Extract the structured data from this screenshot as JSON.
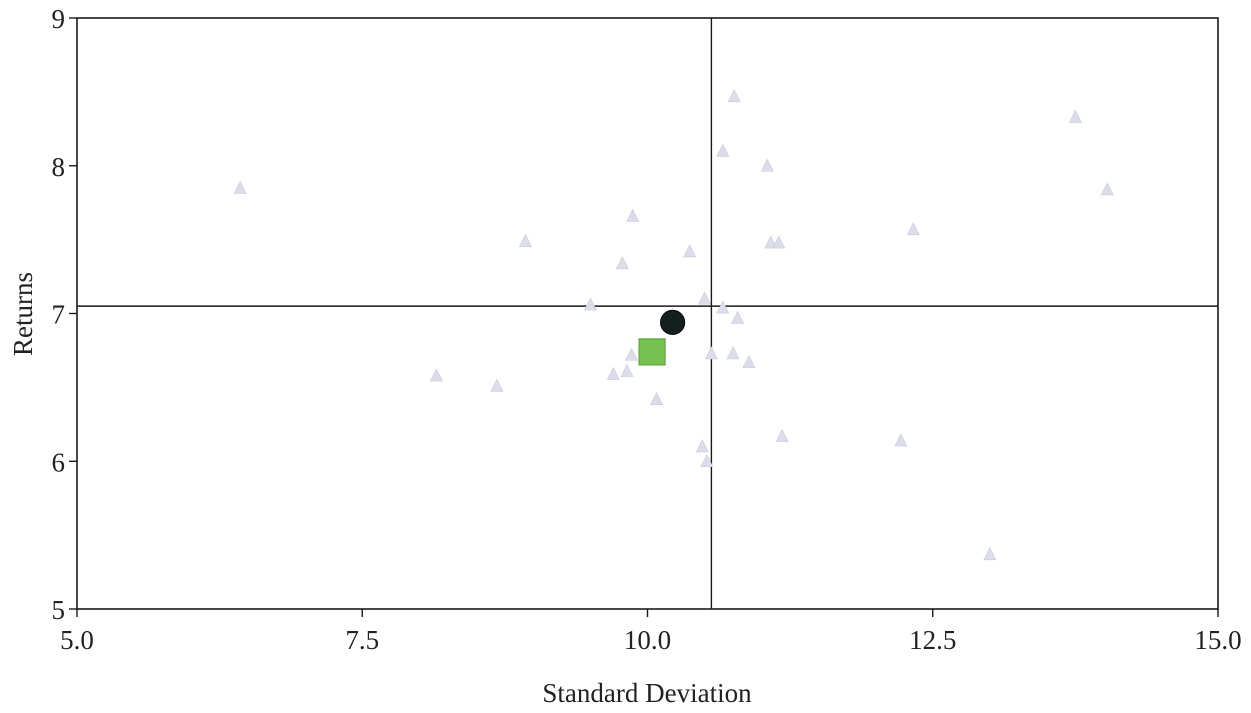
{
  "chart_data": {
    "type": "scatter",
    "xlabel": "Standard Deviation",
    "ylabel": "Returns",
    "xlim": [
      5.0,
      15.0
    ],
    "ylim": [
      5,
      9
    ],
    "x_ticks": [
      {
        "value": 5.0,
        "label": "5.0"
      },
      {
        "value": 7.5,
        "label": "7.5"
      },
      {
        "value": 10.0,
        "label": "10.0"
      },
      {
        "value": 12.5,
        "label": "12.5"
      },
      {
        "value": 15.0,
        "label": "15.0"
      }
    ],
    "y_ticks": [
      {
        "value": 5,
        "label": "5"
      },
      {
        "value": 6,
        "label": "6"
      },
      {
        "value": 7,
        "label": "7"
      },
      {
        "value": 8,
        "label": "8"
      },
      {
        "value": 9,
        "label": "9"
      }
    ],
    "grid": false,
    "reference_lines": {
      "vertical_x": 10.56,
      "horizontal_y": 7.05
    },
    "series": [
      {
        "marker": "triangle",
        "color": "#dcdcea",
        "points": [
          {
            "x": 6.43,
            "y": 7.85
          },
          {
            "x": 8.15,
            "y": 6.58
          },
          {
            "x": 8.68,
            "y": 6.51
          },
          {
            "x": 8.93,
            "y": 7.49
          },
          {
            "x": 9.5,
            "y": 7.06
          },
          {
            "x": 9.7,
            "y": 6.59
          },
          {
            "x": 9.78,
            "y": 7.34
          },
          {
            "x": 9.82,
            "y": 6.61
          },
          {
            "x": 9.86,
            "y": 6.72
          },
          {
            "x": 9.87,
            "y": 7.66
          },
          {
            "x": 10.08,
            "y": 6.42
          },
          {
            "x": 10.37,
            "y": 7.42
          },
          {
            "x": 10.48,
            "y": 6.1
          },
          {
            "x": 10.5,
            "y": 7.1
          },
          {
            "x": 10.52,
            "y": 6.0
          },
          {
            "x": 10.56,
            "y": 6.73
          },
          {
            "x": 10.66,
            "y": 7.04
          },
          {
            "x": 10.66,
            "y": 8.1
          },
          {
            "x": 10.75,
            "y": 6.73
          },
          {
            "x": 10.76,
            "y": 8.47
          },
          {
            "x": 10.79,
            "y": 6.97
          },
          {
            "x": 10.89,
            "y": 6.67
          },
          {
            "x": 11.05,
            "y": 8.0
          },
          {
            "x": 11.08,
            "y": 7.48
          },
          {
            "x": 11.15,
            "y": 7.48
          },
          {
            "x": 11.18,
            "y": 6.17
          },
          {
            "x": 12.22,
            "y": 6.14
          },
          {
            "x": 12.33,
            "y": 7.57
          },
          {
            "x": 13.0,
            "y": 5.37
          },
          {
            "x": 13.75,
            "y": 8.33
          },
          {
            "x": 14.03,
            "y": 7.84
          }
        ]
      },
      {
        "marker": "square",
        "color": "#76c152",
        "points": [
          {
            "x": 10.04,
            "y": 6.74
          }
        ]
      },
      {
        "marker": "circle",
        "color": "#14201d",
        "points": [
          {
            "x": 10.22,
            "y": 6.94
          }
        ]
      }
    ]
  }
}
